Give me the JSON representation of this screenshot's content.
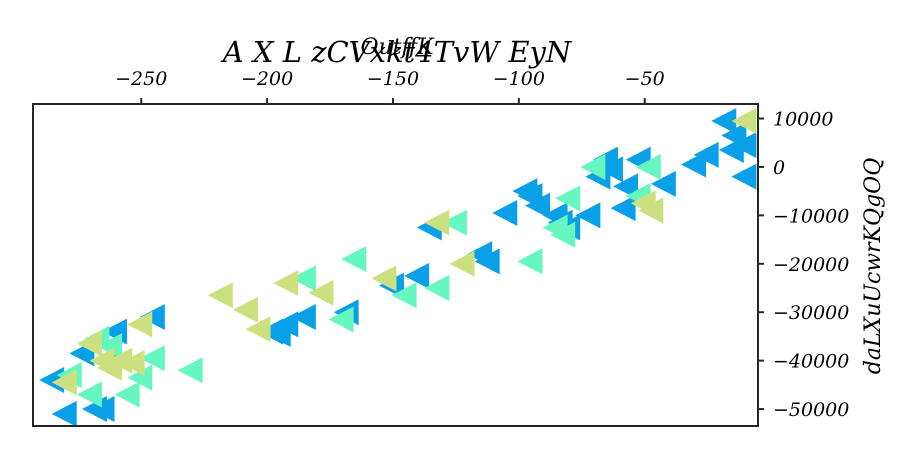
{
  "chart_data": {
    "type": "scatter",
    "title": "A X L zCVxkt4TvW  EyN",
    "xlabel": "OutffK",
    "ylabel": "daLXuUcwrKQgOQ",
    "xlim": [
      -293,
      -5
    ],
    "ylim": [
      -53500,
      13000
    ],
    "x_axis_position": "top",
    "y_axis_position": "right",
    "x_ticks": [
      -250,
      -200,
      -150,
      -100,
      -50
    ],
    "x_tick_labels": [
      "−250",
      "−200",
      "−150",
      "−100",
      "−50"
    ],
    "y_ticks": [
      10000,
      0,
      -10000,
      -20000,
      -30000,
      -40000,
      -50000
    ],
    "y_tick_labels": [
      "10000",
      "0",
      "−10000",
      "−20000",
      "−30000",
      "−40000",
      "−50000"
    ],
    "grid": false,
    "legend": "none",
    "marker": "triangle-left",
    "series": [
      {
        "color": "#0aa0e8",
        "points": [
          [
            -285,
            -44000
          ],
          [
            -280,
            -51000
          ],
          [
            -273,
            -38500
          ],
          [
            -268,
            -50000
          ],
          [
            -265,
            -50000
          ],
          [
            -262,
            -40000
          ],
          [
            -260,
            -34000
          ],
          [
            -245,
            -31000
          ],
          [
            -198,
            -34000
          ],
          [
            -195,
            -34500
          ],
          [
            -192,
            -32500
          ],
          [
            -185,
            -31000
          ],
          [
            -168,
            -30000
          ],
          [
            -150,
            -24500
          ],
          [
            -140,
            -22500
          ],
          [
            -135,
            -12500
          ],
          [
            -115,
            -18000
          ],
          [
            -112,
            -19500
          ],
          [
            -105,
            -9500
          ],
          [
            -97,
            -5000
          ],
          [
            -95,
            -6000
          ],
          [
            -92,
            -8000
          ],
          [
            -85,
            -10000
          ],
          [
            -83,
            -11500
          ],
          [
            -80,
            -12500
          ],
          [
            -72,
            -10000
          ],
          [
            -68,
            -2000
          ],
          [
            -65,
            1500
          ],
          [
            -63,
            -500
          ],
          [
            -58,
            -8500
          ],
          [
            -57,
            -4000
          ],
          [
            -52,
            1500
          ],
          [
            -42,
            -3500
          ],
          [
            -30,
            500
          ],
          [
            -25,
            2500
          ],
          [
            -18,
            9500
          ],
          [
            -15,
            3500
          ],
          [
            -14,
            6500
          ],
          [
            -10,
            -2000
          ],
          [
            -10,
            4500
          ]
        ]
      },
      {
        "color": "#66f6c0",
        "points": [
          [
            -278,
            -43000
          ],
          [
            -270,
            -47000
          ],
          [
            -267,
            -35500
          ],
          [
            -262,
            -37000
          ],
          [
            -255,
            -47000
          ],
          [
            -250,
            -43500
          ],
          [
            -245,
            -39500
          ],
          [
            -230,
            -42000
          ],
          [
            -185,
            -23000
          ],
          [
            -170,
            -31500
          ],
          [
            -165,
            -19000
          ],
          [
            -145,
            -26500
          ],
          [
            -132,
            -25000
          ],
          [
            -125,
            -11500
          ],
          [
            -95,
            -19500
          ],
          [
            -85,
            -12500
          ],
          [
            -82,
            -14000
          ],
          [
            -80,
            -6500
          ],
          [
            -70,
            0
          ],
          [
            -52,
            -6000
          ],
          [
            -48,
            0
          ]
        ]
      },
      {
        "color": "#cce080",
        "points": [
          [
            -280,
            -44500
          ],
          [
            -270,
            -36500
          ],
          [
            -265,
            -40000
          ],
          [
            -262,
            -41500
          ],
          [
            -258,
            -40000
          ],
          [
            -253,
            -40500
          ],
          [
            -250,
            -32500
          ],
          [
            -218,
            -26500
          ],
          [
            -208,
            -29500
          ],
          [
            -203,
            -33500
          ],
          [
            -192,
            -24000
          ],
          [
            -178,
            -26000
          ],
          [
            -153,
            -23000
          ],
          [
            -132,
            -11500
          ],
          [
            -122,
            -20000
          ],
          [
            -50,
            -7500
          ],
          [
            -47,
            -9000
          ],
          [
            -10,
            9500
          ]
        ]
      }
    ]
  }
}
